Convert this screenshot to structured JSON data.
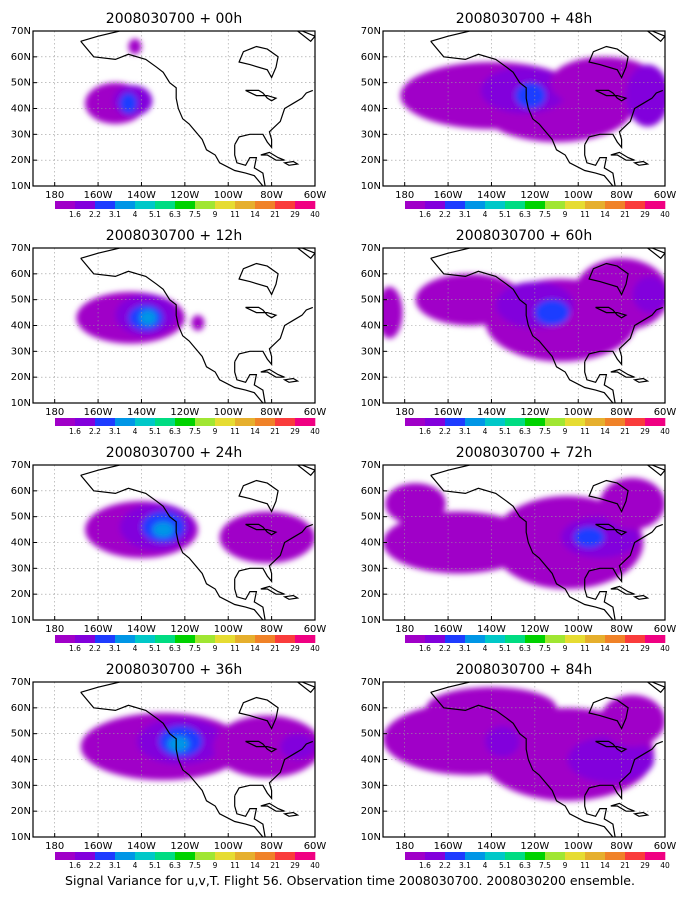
{
  "caption": "Signal Variance for u,v,T. Flight 56. Observation time 2008030700. 2008030200 ensemble.",
  "colorbar": {
    "colors": [
      "#a000c8",
      "#8200dc",
      "#1e3cff",
      "#0096e6",
      "#00c8c8",
      "#00dc82",
      "#00d200",
      "#a0e632",
      "#e6dc32",
      "#e6af2d",
      "#f08228",
      "#fa3c3c",
      "#f00082"
    ],
    "labels": [
      "1.6",
      "2.2",
      "3.1",
      "4",
      "5.1",
      "6.3",
      "7.5",
      "9",
      "11",
      "14",
      "21",
      "29",
      "40"
    ]
  },
  "axes": {
    "lon_ticks": [
      "180",
      "160W",
      "140W",
      "120W",
      "100W",
      "80W",
      "60W"
    ],
    "lat_ticks": [
      "10N",
      "20N",
      "30N",
      "40N",
      "50N",
      "60N",
      "70N"
    ],
    "lon_range": [
      -190,
      -60
    ],
    "lat_range": [
      10,
      70
    ]
  },
  "panels": [
    {
      "title": "2008030700 + 00h",
      "blobs": [
        {
          "lon": -152,
          "lat": 42,
          "rx": 14,
          "ry": 8,
          "level": 0
        },
        {
          "lon": -144,
          "lat": 43,
          "rx": 9,
          "ry": 6,
          "level": 1
        },
        {
          "lon": -146,
          "lat": 42,
          "rx": 4,
          "ry": 4,
          "level": 2
        },
        {
          "lon": -143,
          "lat": 64,
          "rx": 3,
          "ry": 3,
          "level": 0
        }
      ]
    },
    {
      "title": "2008030700 + 48h",
      "blobs": [
        {
          "lon": -140,
          "lat": 45,
          "rx": 42,
          "ry": 13,
          "level": 0
        },
        {
          "lon": -110,
          "lat": 40,
          "rx": 35,
          "ry": 13,
          "level": 0
        },
        {
          "lon": -125,
          "lat": 47,
          "rx": 20,
          "ry": 9,
          "level": 1
        },
        {
          "lon": -122,
          "lat": 45,
          "rx": 7,
          "ry": 5,
          "level": 2
        },
        {
          "lon": -88,
          "lat": 50,
          "rx": 25,
          "ry": 10,
          "level": 0
        },
        {
          "lon": -68,
          "lat": 45,
          "rx": 10,
          "ry": 12,
          "level": 1
        }
      ]
    },
    {
      "title": "2008030700 + 12h",
      "blobs": [
        {
          "lon": -145,
          "lat": 43,
          "rx": 25,
          "ry": 10,
          "level": 0
        },
        {
          "lon": -138,
          "lat": 44,
          "rx": 14,
          "ry": 8,
          "level": 1
        },
        {
          "lon": -138,
          "lat": 43,
          "rx": 8,
          "ry": 5,
          "level": 2
        },
        {
          "lon": -137,
          "lat": 43,
          "rx": 4,
          "ry": 3,
          "level": 3
        },
        {
          "lon": -114,
          "lat": 41,
          "rx": 3,
          "ry": 3,
          "level": 0
        }
      ]
    },
    {
      "title": "2008030700 + 60h",
      "blobs": [
        {
          "lon": -150,
          "lat": 50,
          "rx": 25,
          "ry": 10,
          "level": 0
        },
        {
          "lon": -108,
          "lat": 42,
          "rx": 35,
          "ry": 16,
          "level": 0
        },
        {
          "lon": -120,
          "lat": 48,
          "rx": 18,
          "ry": 9,
          "level": 1
        },
        {
          "lon": -112,
          "lat": 45,
          "rx": 8,
          "ry": 5,
          "level": 2
        },
        {
          "lon": -80,
          "lat": 52,
          "rx": 22,
          "ry": 14,
          "level": 0
        },
        {
          "lon": -67,
          "lat": 52,
          "rx": 8,
          "ry": 7,
          "level": 1
        },
        {
          "lon": -187,
          "lat": 45,
          "rx": 6,
          "ry": 10,
          "level": 0
        }
      ]
    },
    {
      "title": "2008030700 + 24h",
      "blobs": [
        {
          "lon": -140,
          "lat": 45,
          "rx": 26,
          "ry": 11,
          "level": 0
        },
        {
          "lon": -133,
          "lat": 46,
          "rx": 17,
          "ry": 9,
          "level": 1
        },
        {
          "lon": -130,
          "lat": 46,
          "rx": 10,
          "ry": 6,
          "level": 2
        },
        {
          "lon": -130,
          "lat": 45,
          "rx": 5,
          "ry": 3,
          "level": 3
        },
        {
          "lon": -82,
          "lat": 42,
          "rx": 22,
          "ry": 10,
          "level": 0
        }
      ]
    },
    {
      "title": "2008030700 + 72h",
      "blobs": [
        {
          "lon": -155,
          "lat": 40,
          "rx": 35,
          "ry": 12,
          "level": 0
        },
        {
          "lon": -105,
          "lat": 40,
          "rx": 35,
          "ry": 18,
          "level": 0
        },
        {
          "lon": -90,
          "lat": 42,
          "rx": 18,
          "ry": 8,
          "level": 1
        },
        {
          "lon": -95,
          "lat": 42,
          "rx": 7,
          "ry": 4,
          "level": 2
        },
        {
          "lon": -175,
          "lat": 55,
          "rx": 14,
          "ry": 8,
          "level": 0
        },
        {
          "lon": -75,
          "lat": 55,
          "rx": 15,
          "ry": 10,
          "level": 0
        }
      ]
    },
    {
      "title": "2008030700 + 36h",
      "blobs": [
        {
          "lon": -130,
          "lat": 45,
          "rx": 38,
          "ry": 13,
          "level": 0
        },
        {
          "lon": -122,
          "lat": 47,
          "rx": 20,
          "ry": 9,
          "level": 1
        },
        {
          "lon": -122,
          "lat": 47,
          "rx": 10,
          "ry": 6,
          "level": 2
        },
        {
          "lon": -123,
          "lat": 46,
          "rx": 5,
          "ry": 3,
          "level": 3
        },
        {
          "lon": -82,
          "lat": 45,
          "rx": 25,
          "ry": 12,
          "level": 0
        },
        {
          "lon": -68,
          "lat": 45,
          "rx": 8,
          "ry": 5,
          "level": 1
        }
      ]
    },
    {
      "title": "2008030700 + 84h",
      "blobs": [
        {
          "lon": -150,
          "lat": 48,
          "rx": 40,
          "ry": 14,
          "level": 0
        },
        {
          "lon": -105,
          "lat": 42,
          "rx": 40,
          "ry": 18,
          "level": 0
        },
        {
          "lon": -140,
          "lat": 60,
          "rx": 30,
          "ry": 8,
          "level": 0
        },
        {
          "lon": -85,
          "lat": 40,
          "rx": 20,
          "ry": 9,
          "level": 1
        },
        {
          "lon": -135,
          "lat": 47,
          "rx": 8,
          "ry": 6,
          "level": 1
        },
        {
          "lon": -75,
          "lat": 55,
          "rx": 15,
          "ry": 10,
          "level": 0
        }
      ]
    }
  ]
}
